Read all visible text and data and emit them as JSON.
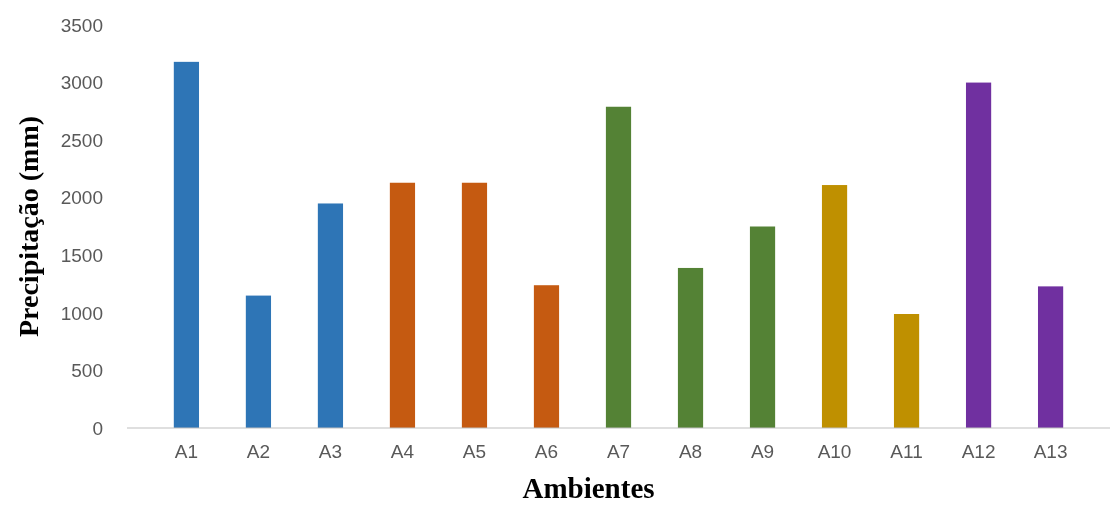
{
  "chart_data": {
    "type": "bar",
    "xlabel": "Ambientes",
    "ylabel": "Precipitação (mm)",
    "categories": [
      "A1",
      "A2",
      "A3",
      "A4",
      "A5",
      "A6",
      "A7",
      "A8",
      "A9",
      "A10",
      "A11",
      "A12",
      "A13"
    ],
    "values": [
      3180,
      1150,
      1950,
      2130,
      2130,
      1240,
      2790,
      1390,
      1750,
      2110,
      990,
      3000,
      1230
    ],
    "colors": [
      "#2e75b6",
      "#2e75b6",
      "#2e75b6",
      "#c55a11",
      "#c55a11",
      "#c55a11",
      "#548235",
      "#548235",
      "#548235",
      "#bf9000",
      "#bf9000",
      "#7030a0",
      "#7030a0"
    ],
    "ylim": [
      0,
      3500
    ],
    "yticks": [
      0,
      500,
      1000,
      1500,
      2000,
      2500,
      3000,
      3500
    ],
    "grid": false
  }
}
